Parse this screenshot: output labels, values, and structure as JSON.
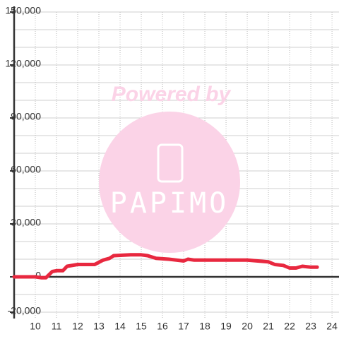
{
  "watermark": {
    "powered_by": "Powered by",
    "logo": "PAPIMO"
  },
  "chart_data": {
    "type": "line",
    "x": [
      9,
      10,
      10.3,
      10.5,
      10.8,
      11,
      11.3,
      11.5,
      12,
      12.5,
      12.8,
      13.2,
      13.5,
      13.7,
      14.5,
      15,
      15.3,
      15.7,
      16.3,
      17,
      17.2,
      17.5,
      18,
      19,
      20,
      20.5,
      21,
      21.3,
      21.7,
      22,
      22.3,
      22.6,
      23,
      23.3
    ],
    "series": [
      {
        "color": "#e8283f",
        "values": [
          0,
          0,
          -500,
          -500,
          3000,
          3500,
          3500,
          6000,
          7000,
          7000,
          7000,
          9500,
          10500,
          12000,
          12500,
          12500,
          12000,
          10500,
          10000,
          9000,
          10000,
          9500,
          9500,
          9500,
          9500,
          9000,
          8500,
          7000,
          6500,
          5000,
          5000,
          6000,
          5500,
          5500
        ]
      }
    ],
    "xlim": [
      9,
      24.33
    ],
    "xticks": [
      10,
      11,
      12,
      13,
      14,
      15,
      16,
      17,
      18,
      19,
      20,
      21,
      22,
      23,
      24
    ],
    "ylim": [
      -23600,
      150000
    ],
    "yticks": [
      {
        "value": -20000,
        "label": "-20,000"
      },
      0,
      {
        "value": 30000,
        "label": "30,000"
      },
      {
        "value": 60000,
        "label": "60,000"
      },
      {
        "value": 90000,
        "label": "90,000"
      },
      {
        "value": 120000,
        "label": "120,000"
      },
      {
        "value": 150000,
        "label": "150,000"
      }
    ],
    "ygrid": [
      -20000,
      -10000,
      10000,
      20000,
      30000,
      40000,
      50000,
      60000,
      70000,
      80000,
      90000,
      100000,
      110000,
      120000,
      130000,
      140000,
      150000
    ],
    "grid": true
  }
}
